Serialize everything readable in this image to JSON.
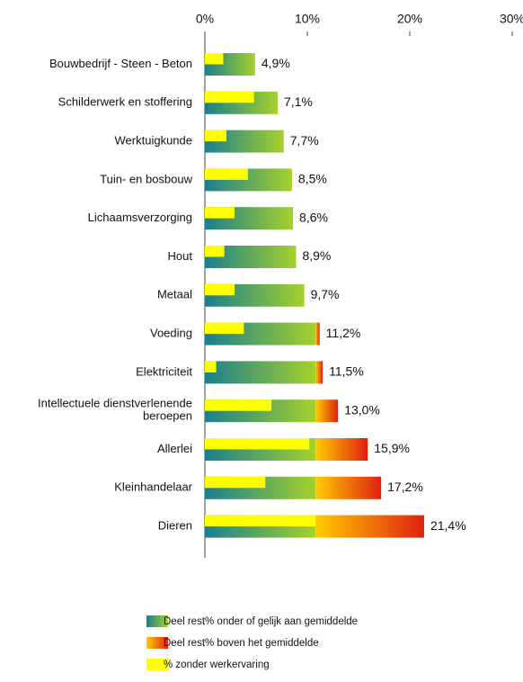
{
  "chart_data": {
    "type": "bar",
    "orientation": "horizontal",
    "categories": [
      "Bouwbedrijf - Steen - Beton",
      "Schilderwerk en stoffering",
      "Werktuigkunde",
      "Tuin- en bosbouw",
      "Lichaamsverzorging",
      "Hout",
      "Metaal",
      "Voeding",
      "Elektriciteit",
      "Intellectuele dienstverlenende beroepen",
      "Allerlei",
      "Kleinhandelaar",
      "Dieren"
    ],
    "values": [
      4.9,
      7.1,
      7.7,
      8.5,
      8.6,
      8.9,
      9.7,
      11.2,
      11.5,
      13.0,
      15.9,
      17.2,
      21.4
    ],
    "value_labels": [
      "4,9%",
      "7,1%",
      "7,7%",
      "8,5%",
      "8,6%",
      "8,9%",
      "9,7%",
      "11,2%",
      "11,5%",
      "13,0%",
      "15,9%",
      "17,2%",
      "21,4%"
    ],
    "series": [
      {
        "name": "Deel rest% onder of gelijk aan gemiddelde",
        "color": [
          "#1a7f8e",
          "#a6d12b"
        ],
        "stack": true,
        "values": [
          4.9,
          7.1,
          7.7,
          8.5,
          8.6,
          8.9,
          9.7,
          10.8,
          10.8,
          10.8,
          10.8,
          10.8,
          10.8
        ]
      },
      {
        "name": "Deel rest% boven het gemiddelde",
        "color": [
          "#ffcc00",
          "#e0200f"
        ],
        "stack": true,
        "values": [
          0,
          0,
          0,
          0,
          0,
          0,
          0,
          0.4,
          0.7,
          2.2,
          5.1,
          6.4,
          10.6
        ]
      },
      {
        "name": "% zonder werkervaring",
        "color": "#ffff00",
        "stack": false,
        "values": [
          1.8,
          4.8,
          2.1,
          4.2,
          2.9,
          1.9,
          2.9,
          3.8,
          1.1,
          6.5,
          10.2,
          5.9,
          10.8
        ]
      }
    ],
    "xlim": [
      0,
      30
    ],
    "xticks": [
      {
        "value": 0,
        "label": "0%"
      },
      {
        "value": 10,
        "label": "10%"
      },
      {
        "value": 20,
        "label": "20%"
      },
      {
        "value": 30,
        "label": "30%"
      }
    ]
  }
}
